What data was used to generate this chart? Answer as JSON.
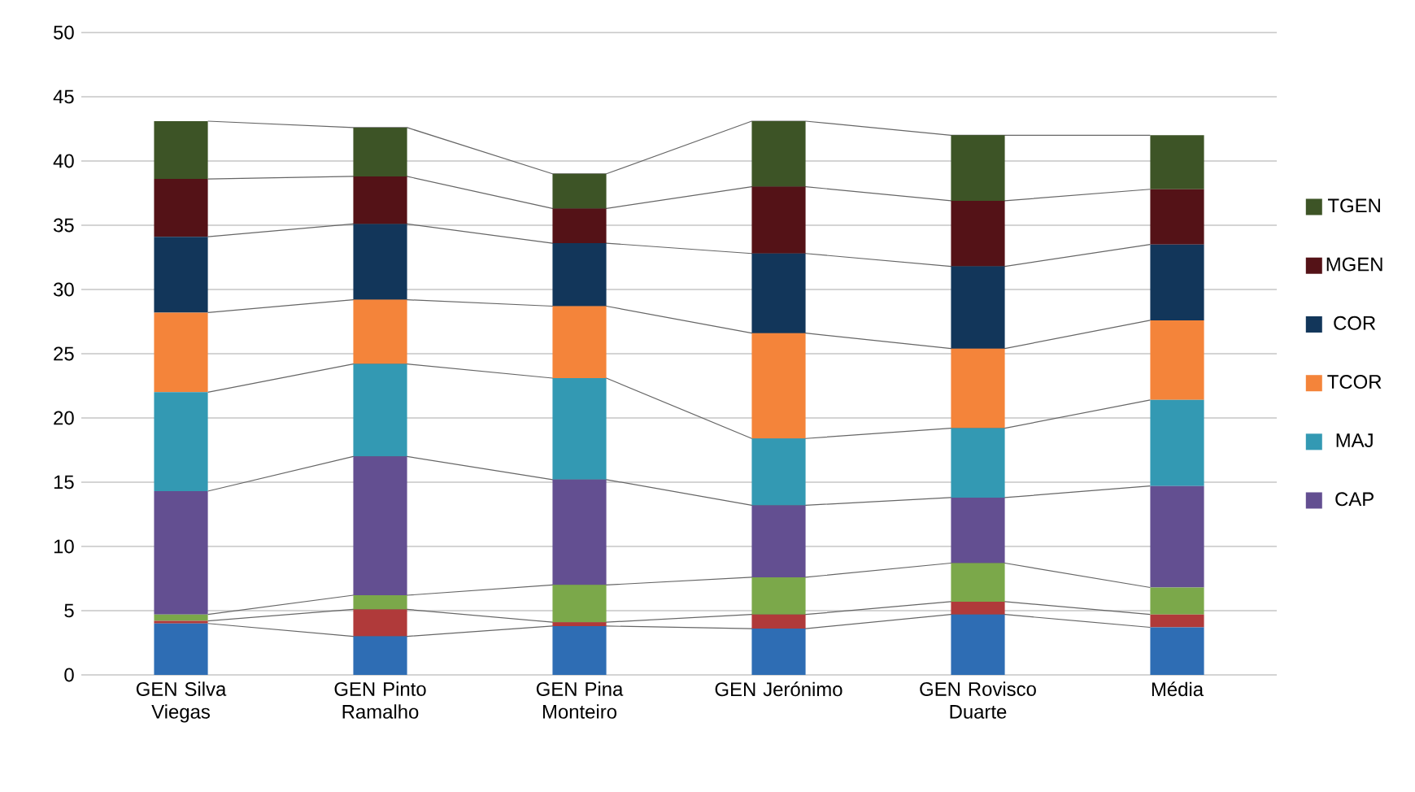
{
  "chart_data": {
    "type": "bar",
    "stacked": true,
    "categories": [
      "GEN Silva Viegas",
      "GEN Pinto Ramalho",
      "GEN Pina Monteiro",
      "GEN Jerónimo",
      "GEN Rovisco Duarte",
      "Média"
    ],
    "series": [
      {
        "color": "#2e6db4",
        "values": [
          4.0,
          3.0,
          3.8,
          3.6,
          4.7,
          3.7
        ]
      },
      {
        "color": "#b03a3a",
        "values": [
          0.2,
          2.1,
          0.3,
          1.1,
          1.0,
          1.0
        ]
      },
      {
        "color": "#7ba84a",
        "values": [
          0.5,
          1.1,
          2.9,
          2.9,
          3.0,
          2.1
        ]
      },
      {
        "name": "CAP",
        "color": "#634f91",
        "values": [
          9.6,
          10.8,
          8.2,
          5.6,
          5.1,
          7.9
        ]
      },
      {
        "name": "MAJ",
        "color": "#3399b3",
        "values": [
          7.7,
          7.2,
          7.9,
          5.2,
          5.4,
          6.7
        ]
      },
      {
        "name": "TCOR",
        "color": "#f4843a",
        "values": [
          6.2,
          5.0,
          5.6,
          8.2,
          6.2,
          6.2
        ]
      },
      {
        "name": "COR",
        "color": "#12365a",
        "values": [
          5.9,
          5.9,
          4.9,
          6.2,
          6.4,
          5.9
        ]
      },
      {
        "name": "MGEN",
        "color": "#541217",
        "values": [
          4.5,
          3.7,
          2.7,
          5.2,
          5.1,
          4.3
        ]
      },
      {
        "name": "TGEN",
        "color": "#3d5426",
        "values": [
          4.5,
          3.8,
          2.7,
          5.1,
          5.1,
          4.2
        ]
      }
    ],
    "ylim": [
      0,
      50
    ],
    "yticks": [
      0,
      5,
      10,
      15,
      20,
      25,
      30,
      35,
      40,
      45,
      50
    ],
    "grid": "y",
    "legend": "right"
  }
}
